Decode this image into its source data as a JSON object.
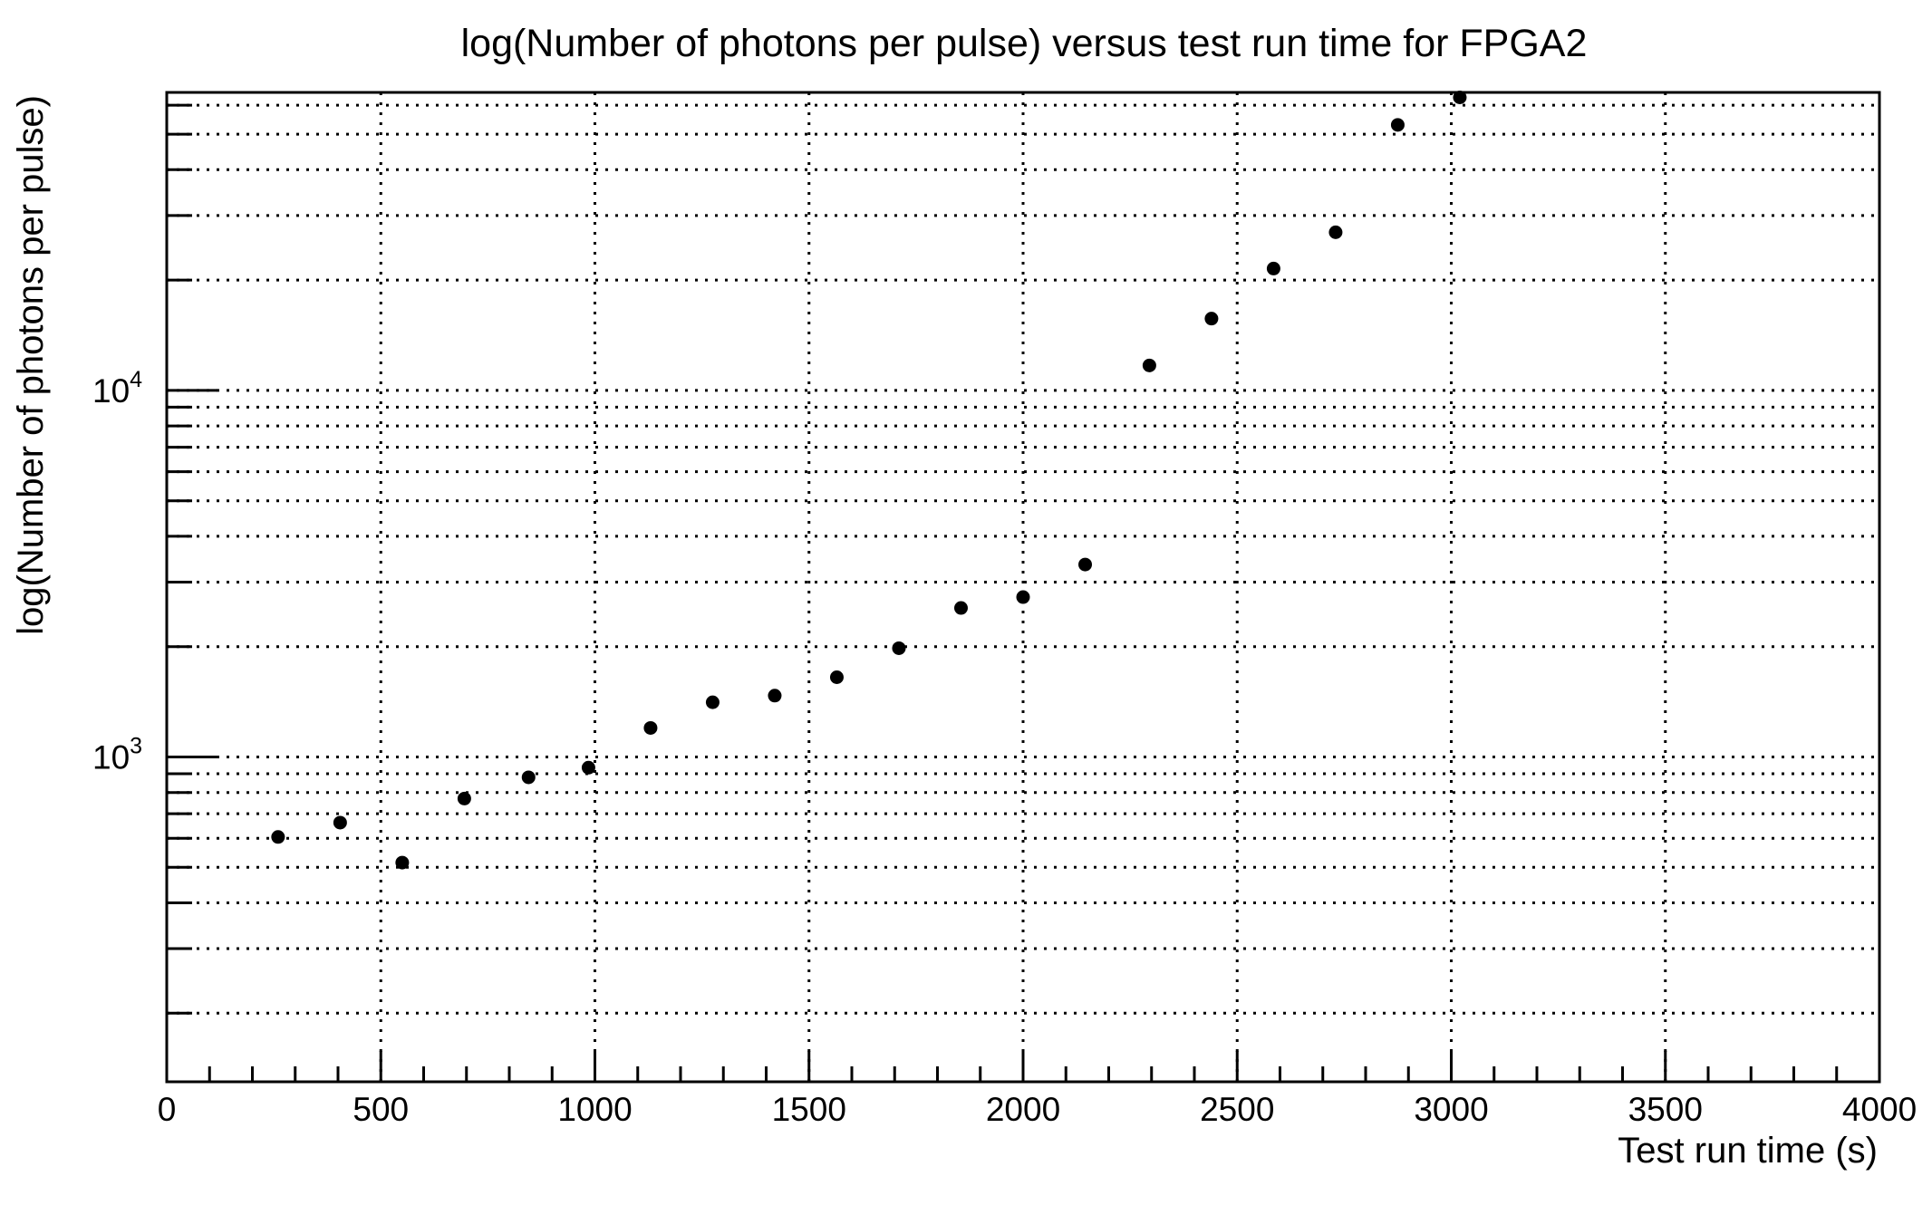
{
  "chart_data": {
    "type": "scatter",
    "title": "log(Number of photons per pulse) versus test run time for FPGA2",
    "xlabel": "Test run time (s)",
    "ylabel": "log(Number of photons per pulse)",
    "xlim": [
      0,
      4000
    ],
    "ylim": [
      130,
      65000
    ],
    "y_scale": "log",
    "grid": true,
    "x_tick_labels": [
      "0",
      "500",
      "1000",
      "1500",
      "2000",
      "2500",
      "3000",
      "3500",
      "4000"
    ],
    "y_tick_labels": [
      {
        "base": "10",
        "exp": "3",
        "value": 1000
      },
      {
        "base": "10",
        "exp": "4",
        "value": 10000
      }
    ],
    "marker_color": "#000000",
    "points": [
      {
        "x": 260,
        "y": 605
      },
      {
        "x": 405,
        "y": 662
      },
      {
        "x": 550,
        "y": 515
      },
      {
        "x": 695,
        "y": 770
      },
      {
        "x": 845,
        "y": 880
      },
      {
        "x": 985,
        "y": 935
      },
      {
        "x": 1130,
        "y": 1200
      },
      {
        "x": 1275,
        "y": 1410
      },
      {
        "x": 1420,
        "y": 1470
      },
      {
        "x": 1565,
        "y": 1650
      },
      {
        "x": 1710,
        "y": 1980
      },
      {
        "x": 1855,
        "y": 2550
      },
      {
        "x": 2000,
        "y": 2730
      },
      {
        "x": 2145,
        "y": 3350
      },
      {
        "x": 2295,
        "y": 11700
      },
      {
        "x": 2440,
        "y": 15700
      },
      {
        "x": 2585,
        "y": 21500
      },
      {
        "x": 2730,
        "y": 27000
      },
      {
        "x": 2875,
        "y": 53000
      },
      {
        "x": 3020,
        "y": 63000
      }
    ]
  }
}
